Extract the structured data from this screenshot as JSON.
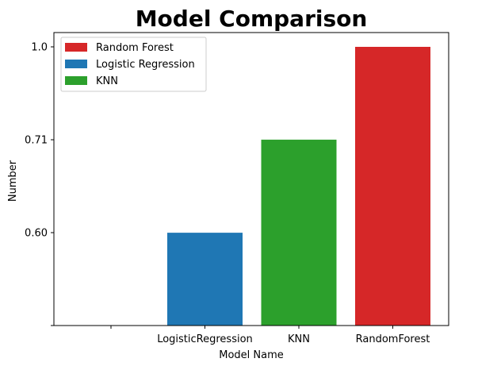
{
  "chart_data": {
    "type": "bar",
    "title": "Model Comparison",
    "xlabel": "Model Name",
    "ylabel": "Number",
    "categories": [
      "",
      "LogisticRegression",
      "KNN",
      "RandomForest"
    ],
    "y_ticks": [
      "",
      "0.60",
      "0.71",
      "1.0"
    ],
    "bars": [
      {
        "category": "LogisticRegression",
        "series": "Logistic Regression",
        "level": 0.333
      },
      {
        "category": "KNN",
        "series": "KNN",
        "level": 0.667
      },
      {
        "category": "RandomForest",
        "series": "Random Forest",
        "level": 1.0
      }
    ],
    "series": [
      {
        "name": "Random Forest",
        "color": "#d62728"
      },
      {
        "name": "Logistic Regression",
        "color": "#1f77b4"
      },
      {
        "name": "KNN",
        "color": "#2ca02c"
      }
    ],
    "note": "Y-axis is categorical: tick labels are evenly spaced and each bar top sits on its own tick.",
    "legend_position": "top-left",
    "grid": false
  }
}
